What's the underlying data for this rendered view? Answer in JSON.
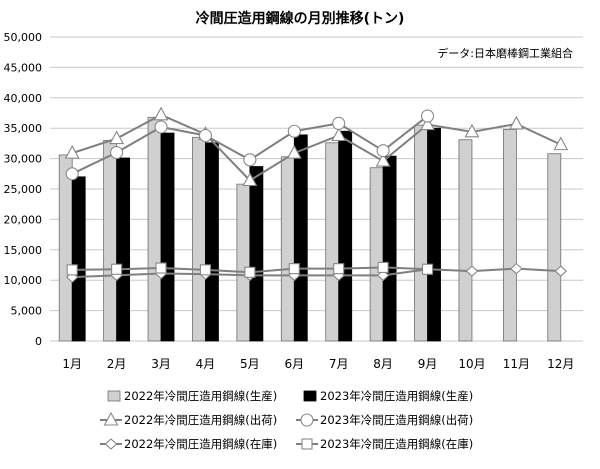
{
  "chart_data": {
    "type": "bar",
    "title": "冷間圧造用鋼線の月別推移(トン)",
    "note": "データ:日本磨棒鋼工業組合",
    "categories": [
      "1月",
      "2月",
      "3月",
      "4月",
      "5月",
      "6月",
      "7月",
      "8月",
      "9月",
      "10月",
      "11月",
      "12月"
    ],
    "ylim": [
      0,
      50000
    ],
    "yticks": [
      "0",
      "5,000",
      "10,000",
      "15,000",
      "20,000",
      "25,000",
      "30,000",
      "35,000",
      "40,000",
      "45,000",
      "50,000"
    ],
    "grid": true,
    "legend_position": "bottom",
    "bar_series": [
      {
        "name": "2022年冷間圧造用鋼線(生産)",
        "color": "#d0d0d0",
        "values": [
          30600,
          33000,
          36800,
          33500,
          25800,
          30300,
          32600,
          28500,
          35500,
          33100,
          34800,
          30800
        ]
      },
      {
        "name": "2023年冷間圧造用鋼線(生産)",
        "color": "#000000",
        "values": [
          27000,
          30100,
          34200,
          32600,
          28700,
          33900,
          34500,
          30400,
          35000,
          null,
          null,
          null
        ]
      }
    ],
    "line_series": [
      {
        "name": "2022年冷間圧造用鋼線(出荷)",
        "marker": "triangle",
        "values": [
          30900,
          33300,
          37200,
          34000,
          26400,
          30900,
          33800,
          29600,
          35600,
          34400,
          35700,
          32300
        ]
      },
      {
        "name": "2023年冷間圧造用鋼線(出荷)",
        "marker": "circle",
        "values": [
          27500,
          31000,
          35200,
          33800,
          29800,
          34500,
          35800,
          31300,
          37000,
          null,
          null,
          null
        ]
      },
      {
        "name": "2022年冷間圧造用鋼線(在庫)",
        "marker": "diamond",
        "values": [
          10500,
          10800,
          11100,
          11000,
          10800,
          10800,
          10800,
          10800,
          11800,
          11500,
          11900,
          11500
        ]
      },
      {
        "name": "2023年冷間圧造用鋼線(在庫)",
        "marker": "square",
        "values": [
          11700,
          11800,
          12000,
          11700,
          11300,
          11900,
          11900,
          12100,
          11800,
          null,
          null,
          null
        ]
      }
    ]
  }
}
